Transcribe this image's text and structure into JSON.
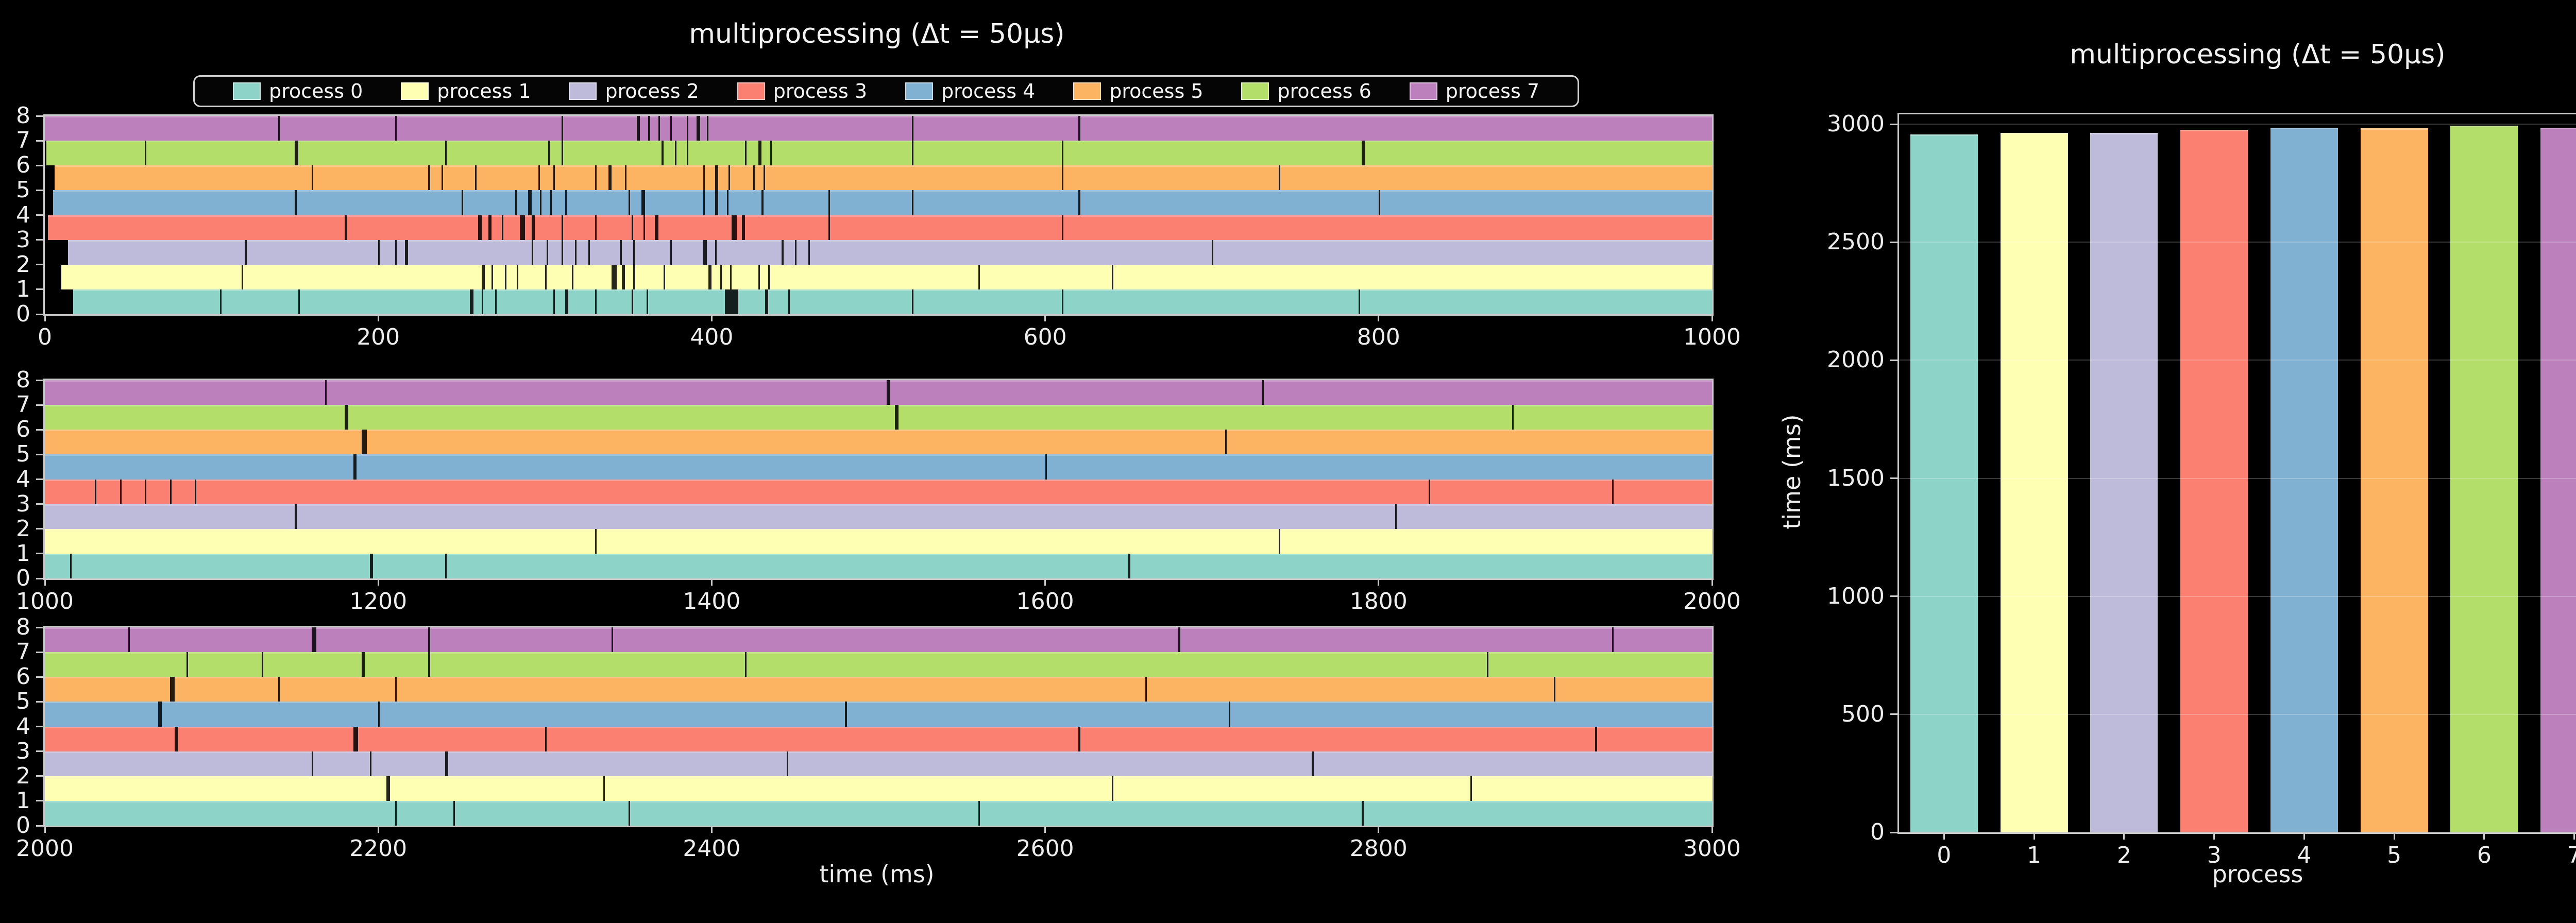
{
  "figure_background": "#000000",
  "text_color": "#f2f2f2",
  "spine_color": "#c9c9c9",
  "legend": {
    "entries": [
      "process 0",
      "process 1",
      "process 2",
      "process 3",
      "process 4",
      "process 5",
      "process 6",
      "process 7"
    ],
    "colors": [
      "#8dd3c7",
      "#ffffb3",
      "#bebada",
      "#fb8072",
      "#80b1d3",
      "#fdb462",
      "#b3de69",
      "#bc80bd"
    ]
  },
  "chart_data": [
    {
      "type": "timeline",
      "title": "multiprocessing (Δt = 50μs)",
      "xlabel": "time (ms)",
      "processes": [
        "process 0",
        "process 1",
        "process 2",
        "process 3",
        "process 4",
        "process 5",
        "process 6",
        "process 7"
      ],
      "colors": [
        "#8dd3c7",
        "#ffffb3",
        "#bebada",
        "#fb8072",
        "#80b1d3",
        "#fdb462",
        "#b3de69",
        "#bc80bd"
      ],
      "yticks": [
        0,
        1,
        2,
        3,
        4,
        5,
        6,
        7,
        8
      ],
      "ylim": [
        0,
        8
      ],
      "grid": false,
      "legend_position": "top center",
      "subplots": [
        {
          "xmin": 0,
          "xmax": 1000,
          "xticks": [
            0,
            200,
            400,
            600,
            800,
            1000
          ],
          "start_times_ms": [
            17,
            10,
            14,
            2,
            5,
            6,
            1,
            0
          ],
          "gaps": [
            [
              0,
              105,
              1
            ],
            [
              0,
              152,
              1
            ],
            [
              0,
              255,
              2
            ],
            [
              0,
              262,
              1
            ],
            [
              0,
              270,
              1
            ],
            [
              0,
              305,
              1
            ],
            [
              0,
              312,
              2
            ],
            [
              0,
              330,
              1
            ],
            [
              0,
              352,
              1
            ],
            [
              0,
              361,
              1
            ],
            [
              0,
              408,
              8
            ],
            [
              0,
              432,
              2
            ],
            [
              0,
              446,
              1
            ],
            [
              0,
              520,
              1
            ],
            [
              0,
              610,
              1
            ],
            [
              0,
              788,
              1
            ],
            [
              1,
              118,
              1
            ],
            [
              1,
              262,
              2
            ],
            [
              1,
              268,
              1
            ],
            [
              1,
              276,
              1
            ],
            [
              1,
              283,
              1
            ],
            [
              1,
              300,
              1
            ],
            [
              1,
              316,
              1
            ],
            [
              1,
              340,
              3
            ],
            [
              1,
              346,
              2
            ],
            [
              1,
              353,
              1
            ],
            [
              1,
              371,
              1
            ],
            [
              1,
              398,
              2
            ],
            [
              1,
              405,
              1
            ],
            [
              1,
              411,
              1
            ],
            [
              1,
              428,
              1
            ],
            [
              1,
              434,
              1
            ],
            [
              1,
              560,
              1
            ],
            [
              1,
              640,
              1
            ],
            [
              2,
              5,
              1
            ],
            [
              2,
              8,
              1
            ],
            [
              2,
              11,
              1
            ],
            [
              2,
              120,
              1
            ],
            [
              2,
              200,
              1
            ],
            [
              2,
              210,
              1
            ],
            [
              2,
              216,
              2
            ],
            [
              2,
              292,
              1
            ],
            [
              2,
              301,
              1
            ],
            [
              2,
              310,
              1
            ],
            [
              2,
              318,
              1
            ],
            [
              2,
              326,
              1
            ],
            [
              2,
              345,
              1
            ],
            [
              2,
              353,
              1
            ],
            [
              2,
              375,
              1
            ],
            [
              2,
              395,
              2
            ],
            [
              2,
              402,
              1
            ],
            [
              2,
              442,
              1
            ],
            [
              2,
              450,
              1
            ],
            [
              2,
              458,
              1
            ],
            [
              2,
              700,
              1
            ],
            [
              3,
              180,
              1
            ],
            [
              3,
              260,
              2
            ],
            [
              3,
              266,
              2
            ],
            [
              3,
              274,
              1
            ],
            [
              3,
              285,
              3
            ],
            [
              3,
              292,
              2
            ],
            [
              3,
              310,
              1
            ],
            [
              3,
              330,
              1
            ],
            [
              3,
              352,
              1
            ],
            [
              3,
              359,
              1
            ],
            [
              3,
              366,
              2
            ],
            [
              3,
              412,
              3
            ],
            [
              3,
              418,
              2
            ],
            [
              3,
              470,
              1
            ],
            [
              3,
              610,
              1
            ],
            [
              4,
              150,
              1
            ],
            [
              4,
              250,
              1
            ],
            [
              4,
              282,
              1
            ],
            [
              4,
              290,
              2
            ],
            [
              4,
              297,
              1
            ],
            [
              4,
              303,
              1
            ],
            [
              4,
              312,
              1
            ],
            [
              4,
              350,
              1
            ],
            [
              4,
              358,
              2
            ],
            [
              4,
              395,
              1
            ],
            [
              4,
              402,
              2
            ],
            [
              4,
              409,
              1
            ],
            [
              4,
              430,
              1
            ],
            [
              4,
              470,
              1
            ],
            [
              4,
              520,
              1
            ],
            [
              4,
              620,
              1
            ],
            [
              4,
              800,
              1
            ],
            [
              5,
              160,
              1
            ],
            [
              5,
              230,
              1
            ],
            [
              5,
              238,
              1
            ],
            [
              5,
              258,
              1
            ],
            [
              5,
              296,
              1
            ],
            [
              5,
              305,
              1
            ],
            [
              5,
              330,
              1
            ],
            [
              5,
              338,
              2
            ],
            [
              5,
              348,
              1
            ],
            [
              5,
              395,
              1
            ],
            [
              5,
              402,
              2
            ],
            [
              5,
              410,
              1
            ],
            [
              5,
              425,
              1
            ],
            [
              5,
              431,
              1
            ],
            [
              5,
              610,
              1
            ],
            [
              5,
              740,
              1
            ],
            [
              6,
              60,
              1
            ],
            [
              6,
              150,
              2
            ],
            [
              6,
              240,
              1
            ],
            [
              6,
              302,
              1
            ],
            [
              6,
              310,
              1
            ],
            [
              6,
              370,
              1
            ],
            [
              6,
              378,
              1
            ],
            [
              6,
              385,
              1
            ],
            [
              6,
              420,
              1
            ],
            [
              6,
              428,
              2
            ],
            [
              6,
              435,
              1
            ],
            [
              6,
              520,
              1
            ],
            [
              6,
              610,
              1
            ],
            [
              6,
              790,
              2
            ],
            [
              7,
              140,
              1
            ],
            [
              7,
              210,
              1
            ],
            [
              7,
              310,
              1
            ],
            [
              7,
              355,
              2
            ],
            [
              7,
              362,
              1
            ],
            [
              7,
              368,
              1
            ],
            [
              7,
              375,
              1
            ],
            [
              7,
              385,
              1
            ],
            [
              7,
              391,
              2
            ],
            [
              7,
              397,
              1
            ],
            [
              7,
              520,
              1
            ],
            [
              7,
              620,
              1
            ]
          ]
        },
        {
          "xmin": 1000,
          "xmax": 2000,
          "xticks": [
            1000,
            1200,
            1400,
            1600,
            1800,
            2000
          ],
          "start_times_ms": [
            1000,
            1000,
            1000,
            1000,
            1000,
            1000,
            1000,
            1000
          ],
          "gaps": [
            [
              0,
              1015,
              1
            ],
            [
              0,
              1195,
              2
            ],
            [
              0,
              1240,
              1
            ],
            [
              0,
              1650,
              1
            ],
            [
              1,
              1330,
              1
            ],
            [
              1,
              1740,
              1
            ],
            [
              2,
              1150,
              1
            ],
            [
              2,
              1810,
              1
            ],
            [
              3,
              1030,
              1
            ],
            [
              3,
              1045,
              1
            ],
            [
              3,
              1060,
              1
            ],
            [
              3,
              1075,
              1
            ],
            [
              3,
              1090,
              1
            ],
            [
              3,
              1830,
              1
            ],
            [
              3,
              1940,
              1
            ],
            [
              4,
              1185,
              2
            ],
            [
              4,
              1600,
              1
            ],
            [
              5,
              1190,
              3
            ],
            [
              5,
              1708,
              1
            ],
            [
              6,
              1180,
              2
            ],
            [
              6,
              1510,
              2
            ],
            [
              6,
              1880,
              1
            ],
            [
              7,
              1168,
              1
            ],
            [
              7,
              1505,
              2
            ],
            [
              7,
              1730,
              1
            ]
          ]
        },
        {
          "xmin": 2000,
          "xmax": 3000,
          "xticks": [
            2000,
            2200,
            2400,
            2600,
            2800,
            3000
          ],
          "start_times_ms": [
            2000,
            2000,
            2000,
            2000,
            2000,
            2000,
            2000,
            2000
          ],
          "gaps": [
            [
              0,
              2210,
              1
            ],
            [
              0,
              2245,
              1
            ],
            [
              0,
              2350,
              1
            ],
            [
              0,
              2560,
              1
            ],
            [
              0,
              2790,
              1
            ],
            [
              1,
              2205,
              2
            ],
            [
              1,
              2335,
              1
            ],
            [
              1,
              2640,
              1
            ],
            [
              1,
              2855,
              1
            ],
            [
              2,
              2160,
              1
            ],
            [
              2,
              2195,
              1
            ],
            [
              2,
              2240,
              2
            ],
            [
              2,
              2445,
              1
            ],
            [
              2,
              2760,
              1
            ],
            [
              3,
              2078,
              2
            ],
            [
              3,
              2185,
              3
            ],
            [
              3,
              2300,
              1
            ],
            [
              3,
              2620,
              1
            ],
            [
              3,
              2930,
              1
            ],
            [
              4,
              2068,
              2
            ],
            [
              4,
              2200,
              1
            ],
            [
              4,
              2480,
              1
            ],
            [
              4,
              2710,
              1
            ],
            [
              5,
              2075,
              3
            ],
            [
              5,
              2140,
              1
            ],
            [
              5,
              2210,
              1
            ],
            [
              5,
              2660,
              1
            ],
            [
              5,
              2905,
              1
            ],
            [
              6,
              2085,
              1
            ],
            [
              6,
              2130,
              1
            ],
            [
              6,
              2190,
              2
            ],
            [
              6,
              2230,
              1
            ],
            [
              6,
              2420,
              1
            ],
            [
              6,
              2865,
              1
            ],
            [
              7,
              2050,
              1
            ],
            [
              7,
              2160,
              3
            ],
            [
              7,
              2230,
              1
            ],
            [
              7,
              2340,
              1
            ],
            [
              7,
              2680,
              1
            ],
            [
              7,
              2940,
              1
            ]
          ]
        }
      ]
    },
    {
      "type": "bar",
      "title": "multiprocessing (Δt = 50μs)",
      "xlabel": "process",
      "ylabel": "time (ms)",
      "categories": [
        "0",
        "1",
        "2",
        "3",
        "4",
        "5",
        "6",
        "7"
      ],
      "values": [
        2958,
        2963,
        2964,
        2976,
        2986,
        2983,
        2993,
        2985
      ],
      "colors": [
        "#8dd3c7",
        "#ffffb3",
        "#bebada",
        "#fb8072",
        "#80b1d3",
        "#fdb462",
        "#b3de69",
        "#bc80bd"
      ],
      "yticks": [
        0,
        500,
        1000,
        1500,
        2000,
        2500,
        3000
      ],
      "ylim": [
        0,
        3042
      ],
      "grid": true,
      "legend_position": "none"
    }
  ]
}
